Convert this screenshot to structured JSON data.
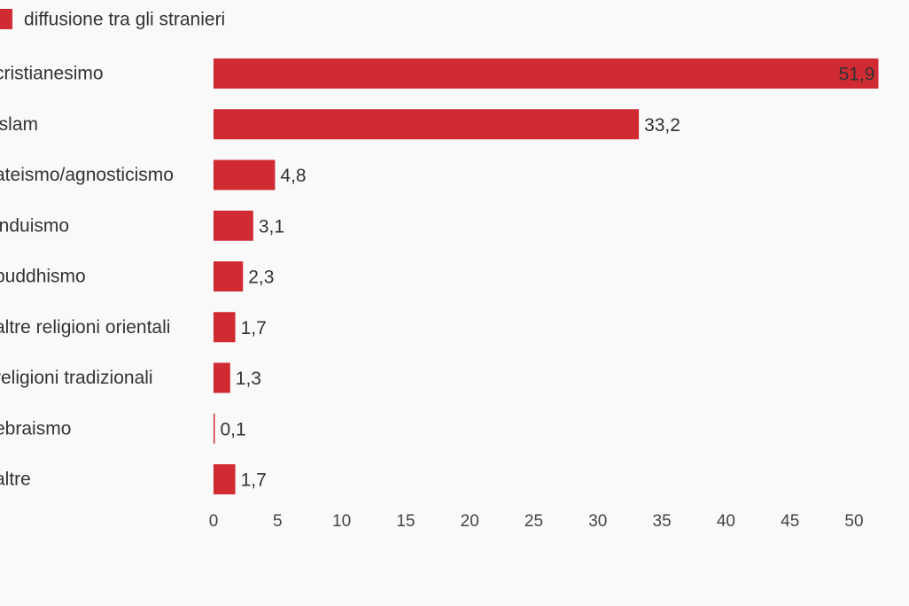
{
  "chart_data": {
    "type": "bar",
    "orientation": "horizontal",
    "categories": [
      "cristianesimo",
      "islam",
      "ateismo/agnosticismo",
      "induismo",
      "buddhismo",
      "altre religioni orientali",
      "religioni tradizionali",
      "ebraismo",
      "altre"
    ],
    "series": [
      {
        "name": "diffusione tra gli stranieri",
        "color": "#d02a32",
        "values": [
          51.9,
          33.2,
          4.8,
          3.1,
          2.3,
          1.7,
          1.3,
          0.1,
          1.7
        ],
        "value_labels": [
          "51,9",
          "33,2",
          "4,8",
          "3,1",
          "2,3",
          "1,7",
          "1,3",
          "0,1",
          "1,7"
        ]
      }
    ],
    "xlim": [
      0,
      55
    ],
    "xticks": [
      0,
      5,
      10,
      15,
      20,
      25,
      30,
      35,
      40,
      45,
      50,
      55
    ]
  }
}
